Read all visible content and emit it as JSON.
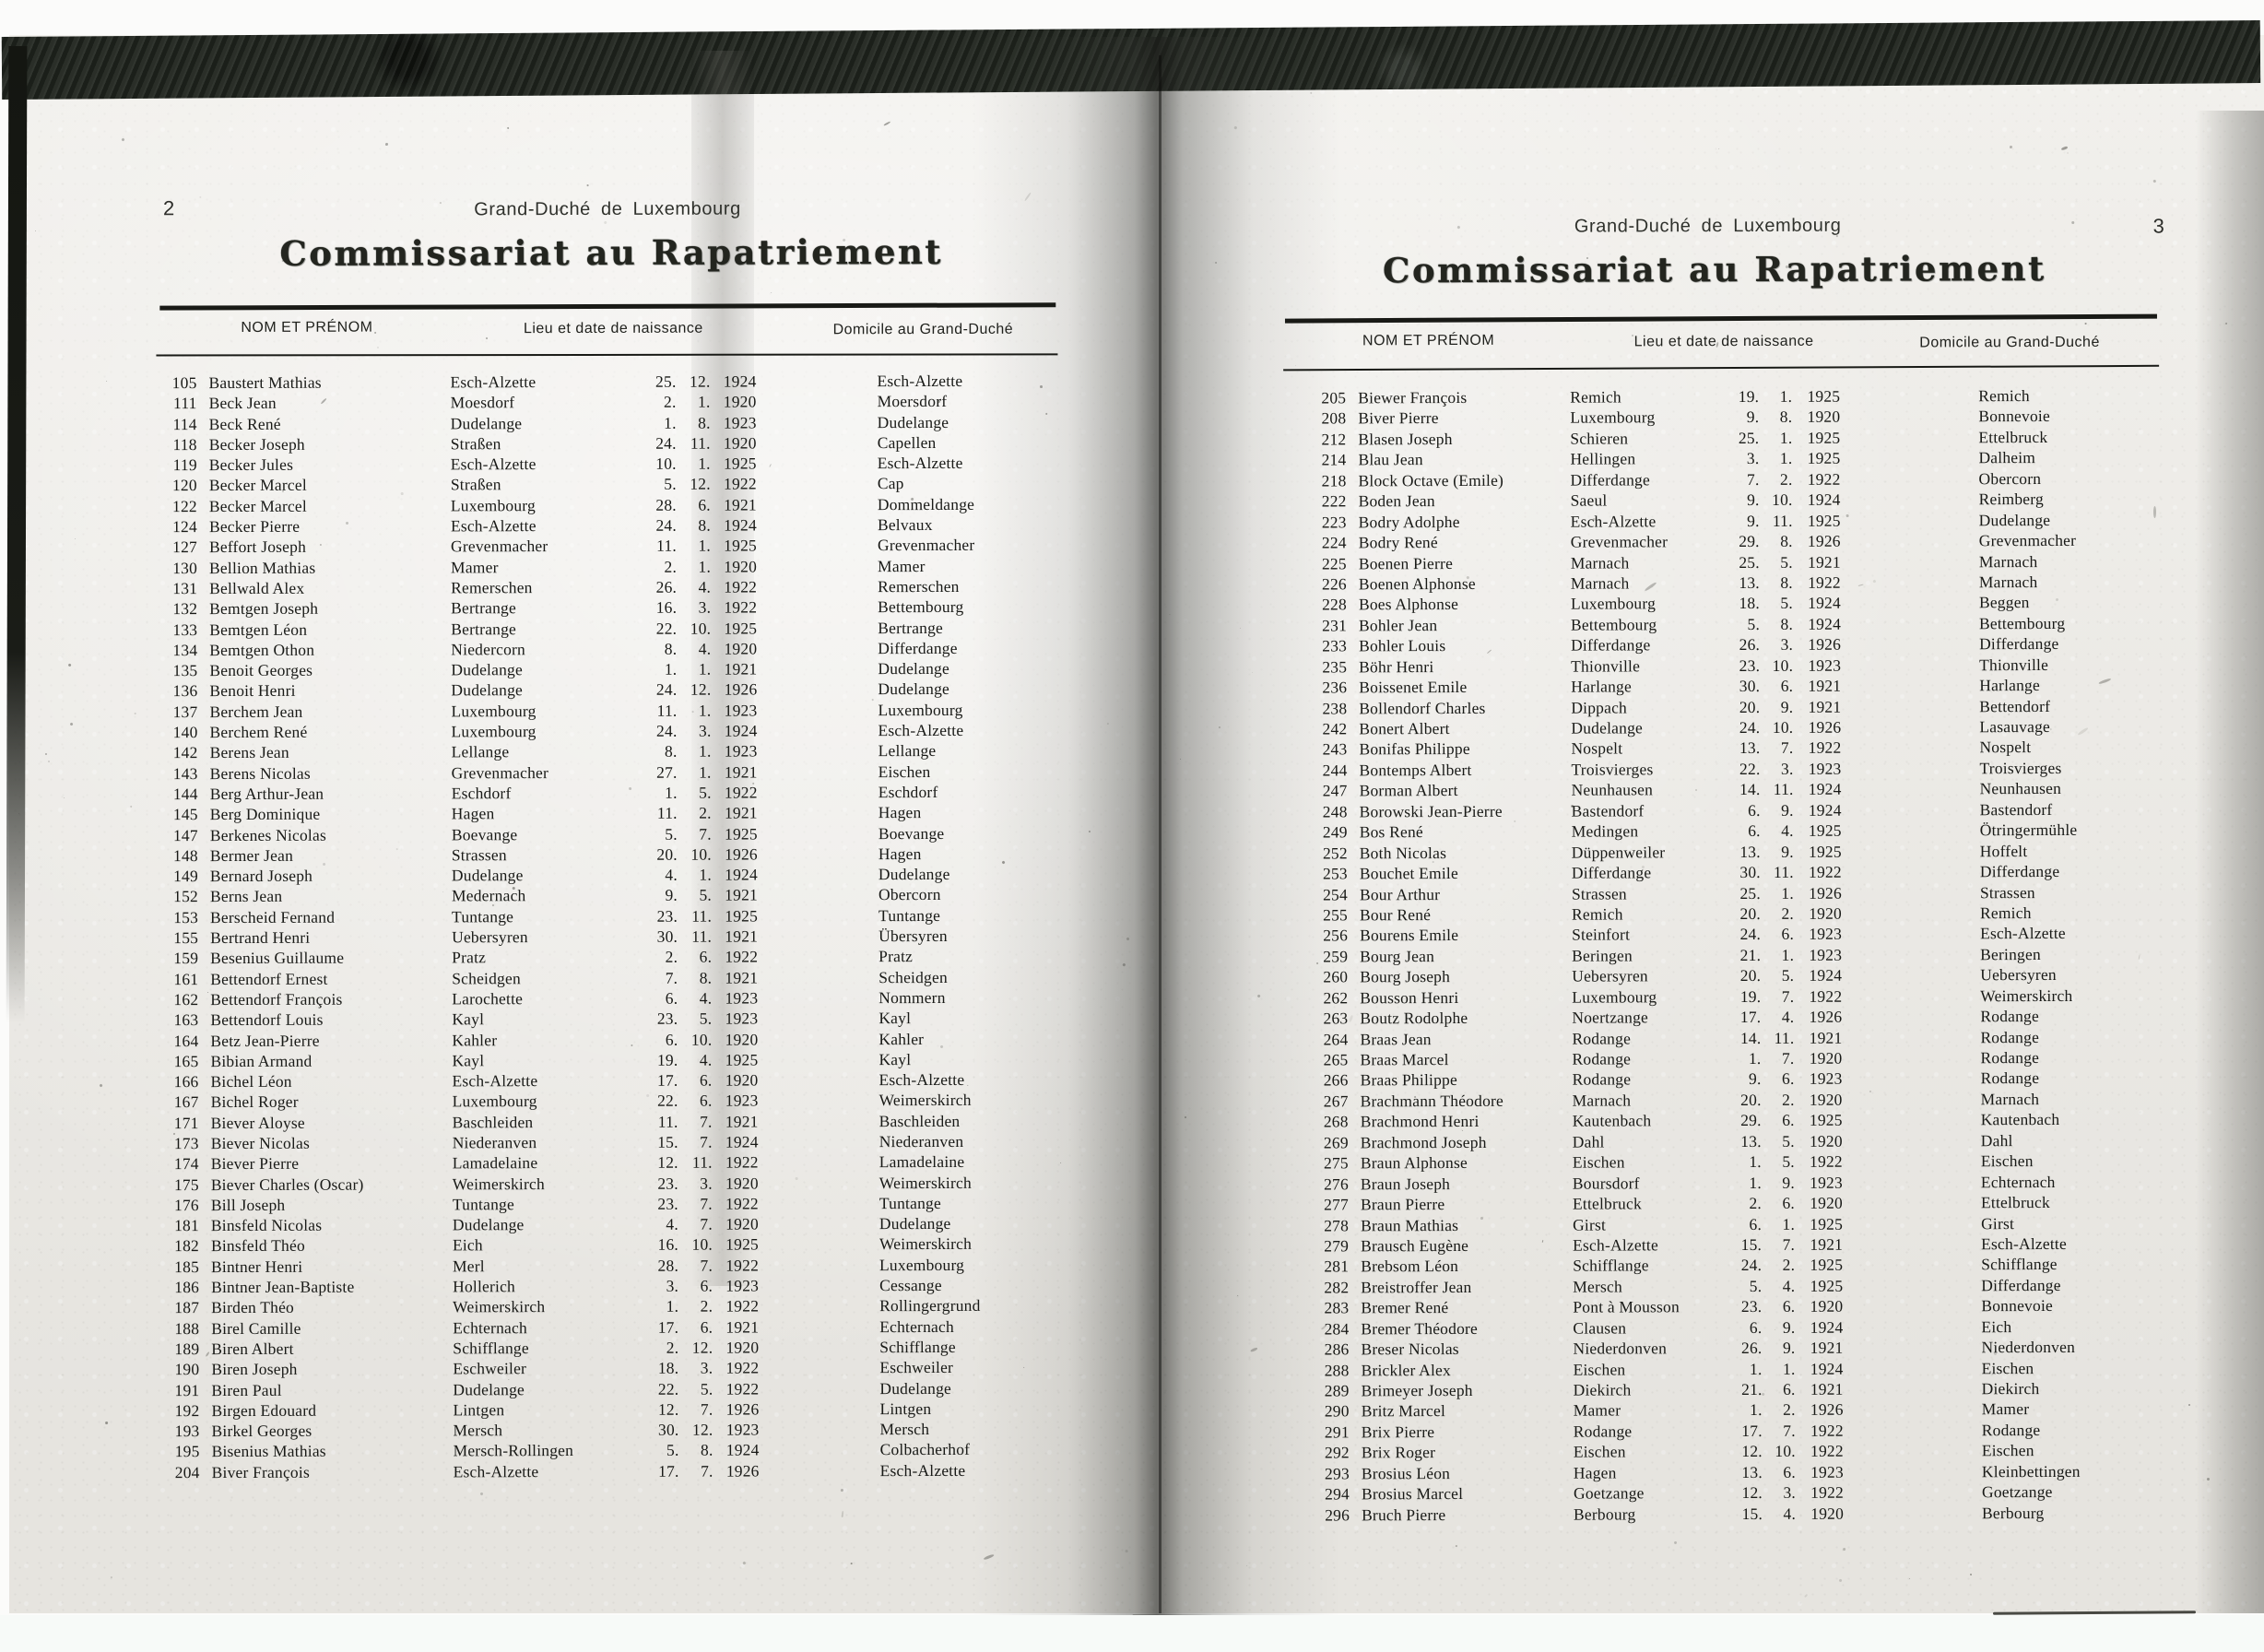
{
  "colors": {
    "paper": "#edebe6",
    "ink": "#1b1c19",
    "scan_band": "#21261f",
    "scanner_background": "#fbfbfa"
  },
  "pages": [
    {
      "page_number": "2",
      "region_label": "Grand-Duché de Luxembourg",
      "title": "Commissariat au Rapatriement",
      "columns": {
        "name": "NOM ET PRÉNOM",
        "birth": "Lieu et date de naissance",
        "domicile": "Domicile au Grand-Duché"
      },
      "row_fields": [
        "no",
        "name",
        "birthplace",
        "birthdate",
        "domicile"
      ],
      "rows": [
        [
          "105",
          "Baustert Mathias",
          "Esch-Alzette",
          "25. 12. 1924",
          "Esch-Alzette"
        ],
        [
          "111",
          "Beck Jean",
          "Moesdorf",
          "2. 1. 1920",
          "Moersdorf"
        ],
        [
          "114",
          "Beck René",
          "Dudelange",
          "1. 8. 1923",
          "Dudelange"
        ],
        [
          "118",
          "Becker Joseph",
          "Straßen",
          "24. 11. 1920",
          "Capellen"
        ],
        [
          "119",
          "Becker Jules",
          "Esch-Alzette",
          "10. 1. 1925",
          "Esch-Alzette"
        ],
        [
          "120",
          "Becker Marcel",
          "Straßen",
          "5. 12. 1922",
          "Cap"
        ],
        [
          "122",
          "Becker Marcel",
          "Luxembourg",
          "28. 6. 1921",
          "Dommeldange"
        ],
        [
          "124",
          "Becker Pierre",
          "Esch-Alzette",
          "24. 8. 1924",
          "Belvaux"
        ],
        [
          "127",
          "Beffort Joseph",
          "Grevenmacher",
          "11. 1. 1925",
          "Grevenmacher"
        ],
        [
          "130",
          "Bellion Mathias",
          "Mamer",
          "2. 1. 1920",
          "Mamer"
        ],
        [
          "131",
          "Bellwald Alex",
          "Remerschen",
          "26. 4. 1922",
          "Remerschen"
        ],
        [
          "132",
          "Bemtgen Joseph",
          "Bertrange",
          "16. 3. 1922",
          "Bettembourg"
        ],
        [
          "133",
          "Bemtgen Léon",
          "Bertrange",
          "22. 10. 1925",
          "Bertrange"
        ],
        [
          "134",
          "Bemtgen Othon",
          "Niedercorn",
          "8. 4. 1920",
          "Differdange"
        ],
        [
          "135",
          "Benoit Georges",
          "Dudelange",
          "1. 1. 1921",
          "Dudelange"
        ],
        [
          "136",
          "Benoit Henri",
          "Dudelange",
          "24. 12. 1926",
          "Dudelange"
        ],
        [
          "137",
          "Berchem Jean",
          "Luxembourg",
          "11. 1. 1923",
          "Luxembourg"
        ],
        [
          "140",
          "Berchem René",
          "Luxembourg",
          "24. 3. 1924",
          "Esch-Alzette"
        ],
        [
          "142",
          "Berens Jean",
          "Lellange",
          "8. 1. 1923",
          "Lellange"
        ],
        [
          "143",
          "Berens Nicolas",
          "Grevenmacher",
          "27. 1. 1921",
          "Eischen"
        ],
        [
          "144",
          "Berg Arthur-Jean",
          "Eschdorf",
          "1. 5. 1922",
          "Eschdorf"
        ],
        [
          "145",
          "Berg Dominique",
          "Hagen",
          "11. 2. 1921",
          "Hagen"
        ],
        [
          "147",
          "Berkenes Nicolas",
          "Boevange",
          "5. 7. 1925",
          "Boevange"
        ],
        [
          "148",
          "Bermer Jean",
          "Strassen",
          "20. 10. 1926",
          "Hagen"
        ],
        [
          "149",
          "Bernard Joseph",
          "Dudelange",
          "4. 1. 1924",
          "Dudelange"
        ],
        [
          "152",
          "Berns Jean",
          "Medernach",
          "9. 5. 1921",
          "Obercorn"
        ],
        [
          "153",
          "Berscheid Fernand",
          "Tuntange",
          "23. 11. 1925",
          "Tuntange"
        ],
        [
          "155",
          "Bertrand Henri",
          "Uebersyren",
          "30. 11. 1921",
          "Übersyren"
        ],
        [
          "159",
          "Besenius Guillaume",
          "Pratz",
          "2. 6. 1922",
          "Pratz"
        ],
        [
          "161",
          "Bettendorf Ernest",
          "Scheidgen",
          "7. 8. 1921",
          "Scheidgen"
        ],
        [
          "162",
          "Bettendorf François",
          "Larochette",
          "6. 4. 1923",
          "Nommern"
        ],
        [
          "163",
          "Bettendorf Louis",
          "Kayl",
          "23. 5. 1923",
          "Kayl"
        ],
        [
          "164",
          "Betz Jean-Pierre",
          "Kahler",
          "6. 10. 1920",
          "Kahler"
        ],
        [
          "165",
          "Bibian Armand",
          "Kayl",
          "19. 4. 1925",
          "Kayl"
        ],
        [
          "166",
          "Bichel Léon",
          "Esch-Alzette",
          "17. 6. 1920",
          "Esch-Alzette"
        ],
        [
          "167",
          "Bichel Roger",
          "Luxembourg",
          "22. 6. 1923",
          "Weimerskirch"
        ],
        [
          "171",
          "Biever Aloyse",
          "Baschleiden",
          "11. 7. 1921",
          "Baschleiden"
        ],
        [
          "173",
          "Biever Nicolas",
          "Niederanven",
          "15. 7. 1924",
          "Niederanven"
        ],
        [
          "174",
          "Biever Pierre",
          "Lamadelaine",
          "12. 11. 1922",
          "Lamadelaine"
        ],
        [
          "175",
          "Biever Charles (Oscar)",
          "Weimerskirch",
          "23. 3. 1920",
          "Weimerskirch"
        ],
        [
          "176",
          "Bill Joseph",
          "Tuntange",
          "23. 7. 1922",
          "Tuntange"
        ],
        [
          "181",
          "Binsfeld Nicolas",
          "Dudelange",
          "4. 7. 1920",
          "Dudelange"
        ],
        [
          "182",
          "Binsfeld Théo",
          "Eich",
          "16. 10. 1925",
          "Weimerskirch"
        ],
        [
          "185",
          "Bintner Henri",
          "Merl",
          "28. 7. 1922",
          "Luxembourg"
        ],
        [
          "186",
          "Bintner Jean-Baptiste",
          "Hollerich",
          "3. 6. 1923",
          "Cessange"
        ],
        [
          "187",
          "Birden Théo",
          "Weimerskirch",
          "1. 2. 1922",
          "Rollingergrund"
        ],
        [
          "188",
          "Birel Camille",
          "Echternach",
          "17. 6. 1921",
          "Echternach"
        ],
        [
          "189",
          "Biren Albert",
          "Schifflange",
          "2. 12. 1920",
          "Schifflange"
        ],
        [
          "190",
          "Biren Joseph",
          "Eschweiler",
          "18. 3. 1922",
          "Eschweiler"
        ],
        [
          "191",
          "Biren Paul",
          "Dudelange",
          "22. 5. 1922",
          "Dudelange"
        ],
        [
          "192",
          "Birgen Edouard",
          "Lintgen",
          "12. 7. 1926",
          "Lintgen"
        ],
        [
          "193",
          "Birkel Georges",
          "Mersch",
          "30. 12. 1923",
          "Mersch"
        ],
        [
          "195",
          "Bisenius Mathias",
          "Mersch-Rollingen",
          "5. 8. 1924",
          "Colbacherhof"
        ],
        [
          "204",
          "Biver François",
          "Esch-Alzette",
          "17. 7. 1926",
          "Esch-Alzette"
        ]
      ]
    },
    {
      "page_number": "3",
      "region_label": "Grand-Duché de Luxembourg",
      "title": "Commissariat au Rapatriement",
      "columns": {
        "name": "NOM ET PRÉNOM",
        "birth": "Lieu et date de naissance",
        "domicile": "Domicile au Grand-Duché"
      },
      "row_fields": [
        "no",
        "name",
        "birthplace",
        "birthdate",
        "domicile"
      ],
      "rows": [
        [
          "205",
          "Biewer François",
          "Remich",
          "19. 1. 1925",
          "Remich"
        ],
        [
          "208",
          "Biver Pierre",
          "Luxembourg",
          "9. 8. 1920",
          "Bonnevoie"
        ],
        [
          "212",
          "Blasen Joseph",
          "Schieren",
          "25. 1. 1925",
          "Ettelbruck"
        ],
        [
          "214",
          "Blau Jean",
          "Hellingen",
          "3. 1. 1925",
          "Dalheim"
        ],
        [
          "218",
          "Block Octave (Emile)",
          "Differdange",
          "7. 2. 1922",
          "Obercorn"
        ],
        [
          "222",
          "Boden Jean",
          "Saeul",
          "9. 10. 1924",
          "Reimberg"
        ],
        [
          "223",
          "Bodry Adolphe",
          "Esch-Alzette",
          "9. 11. 1925",
          "Dudelange"
        ],
        [
          "224",
          "Bodry René",
          "Grevenmacher",
          "29. 8. 1926",
          "Grevenmacher"
        ],
        [
          "225",
          "Boenen Pierre",
          "Marnach",
          "25. 5. 1921",
          "Marnach"
        ],
        [
          "226",
          "Boenen Alphonse",
          "Marnach",
          "13. 8. 1922",
          "Marnach"
        ],
        [
          "228",
          "Boes Alphonse",
          "Luxembourg",
          "18. 5. 1924",
          "Beggen"
        ],
        [
          "231",
          "Bohler Jean",
          "Bettembourg",
          "5. 8. 1924",
          "Bettembourg"
        ],
        [
          "233",
          "Bohler Louis",
          "Differdange",
          "26. 3. 1926",
          "Differdange"
        ],
        [
          "235",
          "Böhr Henri",
          "Thionville",
          "23. 10. 1923",
          "Thionville"
        ],
        [
          "236",
          "Boissenet Emile",
          "Harlange",
          "30. 6. 1921",
          "Harlange"
        ],
        [
          "238",
          "Bollendorf Charles",
          "Dippach",
          "20. 9. 1921",
          "Bettendorf"
        ],
        [
          "242",
          "Bonert Albert",
          "Dudelange",
          "24. 10. 1926",
          "Lasauvage"
        ],
        [
          "243",
          "Bonifas Philippe",
          "Nospelt",
          "13. 7. 1922",
          "Nospelt"
        ],
        [
          "244",
          "Bontemps Albert",
          "Troisvierges",
          "22. 3. 1923",
          "Troisvierges"
        ],
        [
          "247",
          "Borman Albert",
          "Neunhausen",
          "14. 11. 1924",
          "Neunhausen"
        ],
        [
          "248",
          "Borowski Jean-Pierre",
          "Bastendorf",
          "6. 9. 1924",
          "Bastendorf"
        ],
        [
          "249",
          "Bos René",
          "Medingen",
          "6. 4. 1925",
          "Ötringermühle"
        ],
        [
          "252",
          "Both Nicolas",
          "Düppenweiler",
          "13. 9. 1925",
          "Hoffelt"
        ],
        [
          "253",
          "Bouchet Emile",
          "Differdange",
          "30. 11. 1922",
          "Differdange"
        ],
        [
          "254",
          "Bour Arthur",
          "Strassen",
          "25. 1. 1926",
          "Strassen"
        ],
        [
          "255",
          "Bour René",
          "Remich",
          "20. 2. 1920",
          "Remich"
        ],
        [
          "256",
          "Bourens Emile",
          "Steinfort",
          "24. 6. 1923",
          "Esch-Alzette"
        ],
        [
          "259",
          "Bourg Jean",
          "Beringen",
          "21. 1. 1923",
          "Beringen"
        ],
        [
          "260",
          "Bourg Joseph",
          "Uebersyren",
          "20. 5. 1924",
          "Uebersyren"
        ],
        [
          "262",
          "Bousson Henri",
          "Luxembourg",
          "19. 7. 1922",
          "Weimerskirch"
        ],
        [
          "263",
          "Boutz Rodolphe",
          "Noertzange",
          "17. 4. 1926",
          "Rodange"
        ],
        [
          "264",
          "Braas Jean",
          "Rodange",
          "14. 11. 1921",
          "Rodange"
        ],
        [
          "265",
          "Braas Marcel",
          "Rodange",
          "1. 7. 1920",
          "Rodange"
        ],
        [
          "266",
          "Braas Philippe",
          "Rodange",
          "9. 6. 1923",
          "Rodange"
        ],
        [
          "267",
          "Brachmann Théodore",
          "Marnach",
          "20. 2. 1920",
          "Marnach"
        ],
        [
          "268",
          "Brachmond Henri",
          "Kautenbach",
          "29. 6. 1925",
          "Kautenbach"
        ],
        [
          "269",
          "Brachmond Joseph",
          "Dahl",
          "13. 5. 1920",
          "Dahl"
        ],
        [
          "275",
          "Braun Alphonse",
          "Eischen",
          "1. 5. 1922",
          "Eischen"
        ],
        [
          "276",
          "Braun Joseph",
          "Boursdorf",
          "1. 9. 1923",
          "Echternach"
        ],
        [
          "277",
          "Braun Pierre",
          "Ettelbruck",
          "2. 6. 1920",
          "Ettelbruck"
        ],
        [
          "278",
          "Braun Mathias",
          "Girst",
          "6. 1. 1925",
          "Girst"
        ],
        [
          "279",
          "Brausch Eugène",
          "Esch-Alzette",
          "15. 7. 1921",
          "Esch-Alzette"
        ],
        [
          "281",
          "Brebsom Léon",
          "Schifflange",
          "24. 2. 1925",
          "Schifflange"
        ],
        [
          "282",
          "Breistroffer Jean",
          "Mersch",
          "5. 4. 1925",
          "Differdange"
        ],
        [
          "283",
          "Bremer René",
          "Pont à Mousson",
          "23. 6. 1920",
          "Bonnevoie"
        ],
        [
          "284",
          "Bremer Théodore",
          "Clausen",
          "6. 9. 1924",
          "Eich"
        ],
        [
          "286",
          "Breser Nicolas",
          "Niederdonven",
          "26. 9. 1921",
          "Niederdonven"
        ],
        [
          "288",
          "Brickler Alex",
          "Eischen",
          "1. 1. 1924",
          "Eischen"
        ],
        [
          "289",
          "Brimeyer Joseph",
          "Diekirch",
          "21. 6. 1921",
          "Diekirch"
        ],
        [
          "290",
          "Britz Marcel",
          "Mamer",
          "1. 2. 1926",
          "Mamer"
        ],
        [
          "291",
          "Brix Pierre",
          "Rodange",
          "17. 7. 1922",
          "Rodange"
        ],
        [
          "292",
          "Brix Roger",
          "Eischen",
          "12. 10. 1922",
          "Eischen"
        ],
        [
          "293",
          "Brosius Léon",
          "Hagen",
          "13. 6. 1923",
          "Kleinbettingen"
        ],
        [
          "294",
          "Brosius Marcel",
          "Goetzange",
          "12. 3. 1922",
          "Goetzange"
        ],
        [
          "296",
          "Bruch Pierre",
          "Berbourg",
          "15. 4. 1920",
          "Berbourg"
        ]
      ]
    }
  ]
}
